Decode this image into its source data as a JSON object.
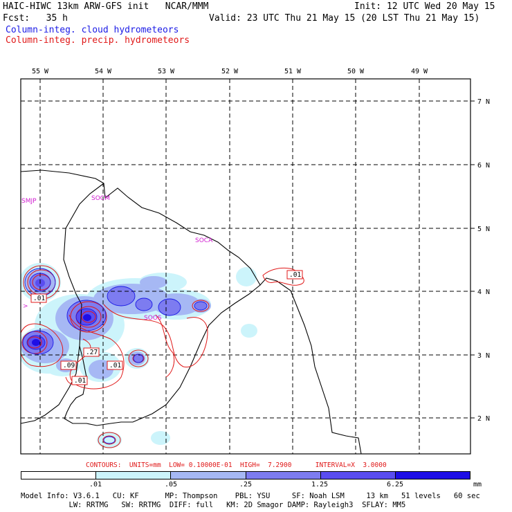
{
  "header": {
    "model_title": "HAIC-HIWC 13km ARW-GFS init   NCAR/MMM",
    "init": "Init: 12 UTC Wed 20 May 15",
    "fcst": "Fcst:   35 h",
    "valid": "Valid: 23 UTC Thu 21 May 15 (20 LST Thu 21 May 15)",
    "field_cloud": "Column-integ. cloud hydrometeors",
    "field_precip": "Column-integ. precip. hydrometeors"
  },
  "map": {
    "lon_labels": [
      "55 W",
      "54 W",
      "53 W",
      "52 W",
      "51 W",
      "50 W",
      "49 W"
    ],
    "lat_labels": [
      "7 N",
      "6 N",
      "5 N",
      "4 N",
      "3 N",
      "2 N"
    ],
    "stations": [
      "SMJP",
      "SOCM",
      "SOCA",
      "SOOS"
    ],
    "contour_labels": [
      ".01",
      ".01",
      ".27",
      ".09",
      ".01",
      ".01"
    ],
    "colors": {
      "cloud_contour": "#1a1ae6",
      "precip_contour": "#e01818",
      "coast": "#000000",
      "station": "#d01cd0"
    }
  },
  "contours_info": "CONTOURS:  UNITS=mm  LOW= 0.10000E-01  HIGH=  7.2900      INTERVAL=X  3.0000",
  "colorbar": {
    "ticks": [
      ".01",
      ".05",
      ".25",
      "1.25",
      "6.25"
    ],
    "units": "mm",
    "colors": [
      "#ffffff",
      "#ccf4fb",
      "#a6b8f4",
      "#7d7cf0",
      "#5a4df0",
      "#1e0ee6"
    ]
  },
  "footer": {
    "line1": "Model Info: V3.6.1   CU: KF      MP: Thompson    PBL: YSU     SF: Noah LSM     13 km   51 levels   60 sec",
    "line2": "           LW: RRTMG   SW: RRTMG  DIFF: full   KM: 2D Smagor DAMP: Rayleigh3  SFLAY: MM5"
  }
}
